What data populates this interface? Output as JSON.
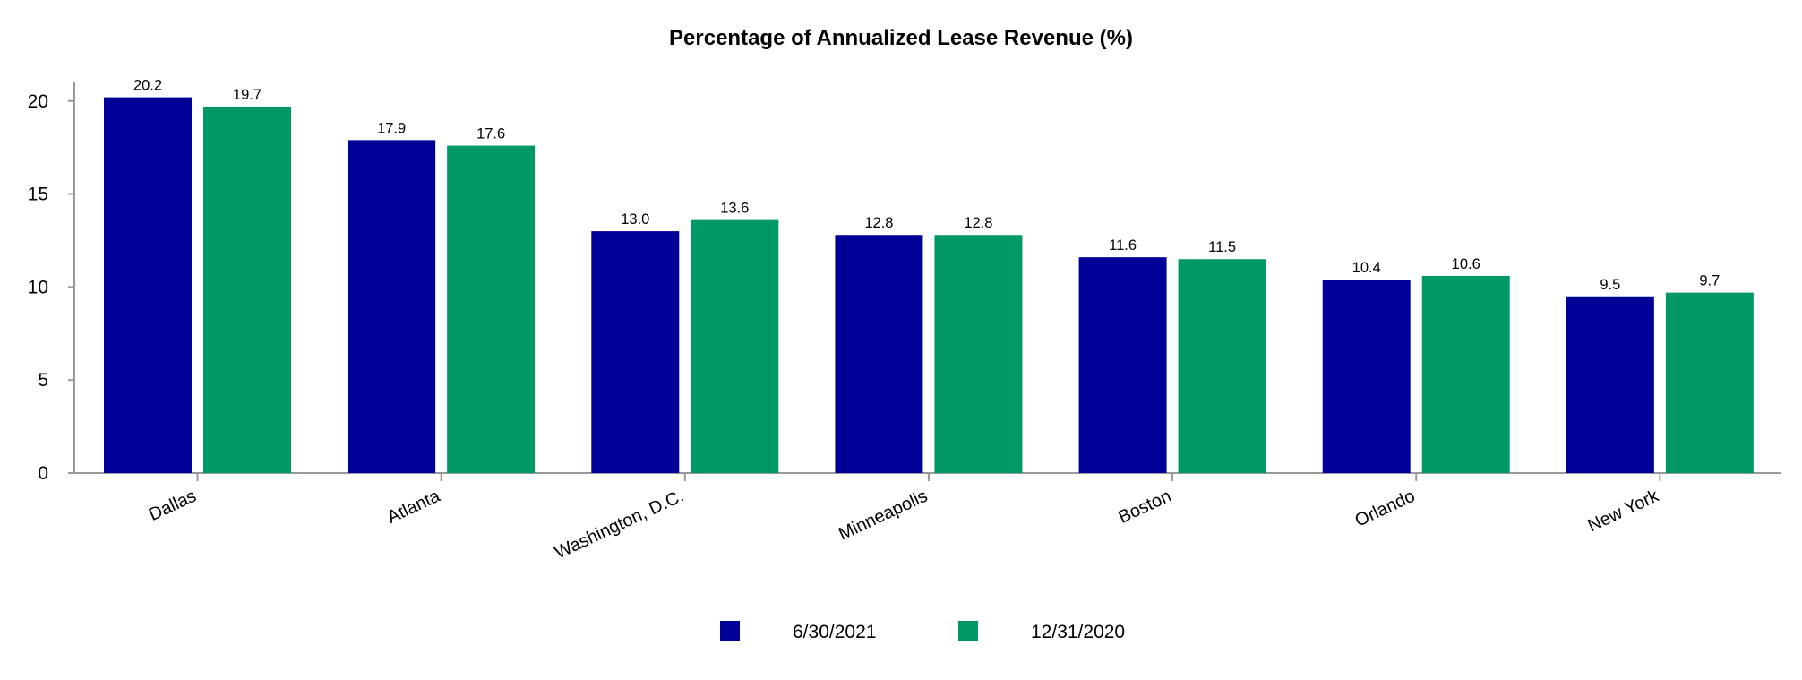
{
  "chart_data": {
    "type": "bar",
    "title": "Percentage of Annualized Lease Revenue (%)",
    "xlabel": "",
    "ylabel": "",
    "categories": [
      "Dallas",
      "Atlanta",
      "Washington, D.C.",
      "Minneapolis",
      "Boston",
      "Orlando",
      "New York"
    ],
    "series": [
      {
        "name": "6/30/2021",
        "color": "#000099",
        "values": [
          20.2,
          17.9,
          13.0,
          12.8,
          11.6,
          10.4,
          9.5
        ],
        "labels": [
          "20.2",
          "17.9",
          "13.0",
          "12.8",
          "11.6",
          "10.4",
          "9.5"
        ]
      },
      {
        "name": "12/31/2020",
        "color": "#009966",
        "values": [
          19.7,
          17.6,
          13.6,
          12.8,
          11.5,
          10.6,
          9.7
        ],
        "labels": [
          "19.7",
          "17.6",
          "13.6",
          "12.8",
          "11.5",
          "10.6",
          "9.7"
        ]
      }
    ],
    "ylim": [
      0,
      21
    ],
    "yticks": [
      0,
      5,
      10,
      15,
      20
    ],
    "grid": false,
    "legend_position": "bottom-center",
    "axis_color": "#999999"
  }
}
